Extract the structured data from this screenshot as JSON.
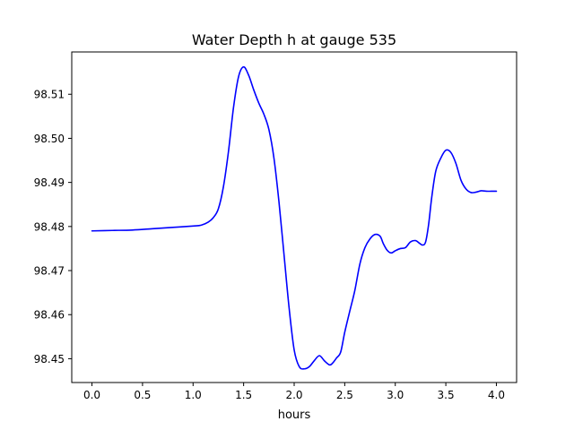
{
  "chart_data": {
    "type": "line",
    "title": "Water Depth h at gauge 535",
    "xlabel": "hours",
    "ylabel": "",
    "xlim": [
      -0.2,
      4.2
    ],
    "ylim": [
      98.4446,
      98.5196
    ],
    "x_ticks": [
      0.0,
      0.5,
      1.0,
      1.5,
      2.0,
      2.5,
      3.0,
      3.5,
      4.0
    ],
    "x_tick_labels": [
      "0.0",
      "0.5",
      "1.0",
      "1.5",
      "2.0",
      "2.5",
      "3.0",
      "3.5",
      "4.0"
    ],
    "y_ticks": [
      98.45,
      98.46,
      98.47,
      98.48,
      98.49,
      98.5,
      98.51
    ],
    "y_tick_labels": [
      "98.45",
      "98.46",
      "98.47",
      "98.48",
      "98.49",
      "98.50",
      "98.51"
    ],
    "grid": false,
    "legend": "none",
    "series": [
      {
        "color": "#0000ff",
        "x": [
          0.0,
          0.2,
          0.4,
          0.6,
          0.8,
          1.0,
          1.08,
          1.15,
          1.2,
          1.25,
          1.3,
          1.35,
          1.4,
          1.45,
          1.5,
          1.55,
          1.6,
          1.65,
          1.7,
          1.75,
          1.8,
          1.85,
          1.9,
          1.95,
          2.0,
          2.05,
          2.1,
          2.15,
          2.2,
          2.25,
          2.3,
          2.35,
          2.38,
          2.42,
          2.46,
          2.5,
          2.55,
          2.6,
          2.65,
          2.7,
          2.75,
          2.8,
          2.85,
          2.88,
          2.92,
          2.96,
          3.0,
          3.05,
          3.1,
          3.15,
          3.2,
          3.24,
          3.27,
          3.3,
          3.33,
          3.36,
          3.4,
          3.45,
          3.5,
          3.55,
          3.6,
          3.65,
          3.7,
          3.75,
          3.8,
          3.85,
          3.9,
          3.95,
          4.0
        ],
        "values": [
          98.479,
          98.4791,
          98.4792,
          98.4795,
          98.4798,
          98.4801,
          98.4803,
          98.481,
          98.482,
          98.484,
          98.489,
          98.497,
          98.507,
          98.514,
          98.5162,
          98.5143,
          98.511,
          98.508,
          98.5055,
          98.502,
          98.4955,
          98.4855,
          98.4735,
          98.4615,
          98.452,
          98.4482,
          98.4477,
          98.4482,
          98.4496,
          98.4507,
          98.4495,
          98.4486,
          98.449,
          98.4502,
          98.4515,
          98.456,
          98.4608,
          98.4655,
          98.4715,
          98.4752,
          98.4772,
          98.4782,
          98.4778,
          98.4762,
          98.4746,
          98.474,
          98.4745,
          98.475,
          98.4752,
          98.4765,
          98.4768,
          98.4762,
          98.4758,
          98.4765,
          98.4805,
          98.4865,
          98.4925,
          98.4955,
          98.4973,
          98.4968,
          98.4943,
          98.4905,
          98.4885,
          98.4877,
          98.4878,
          98.4881,
          98.488,
          98.488,
          98.488
        ]
      }
    ]
  }
}
